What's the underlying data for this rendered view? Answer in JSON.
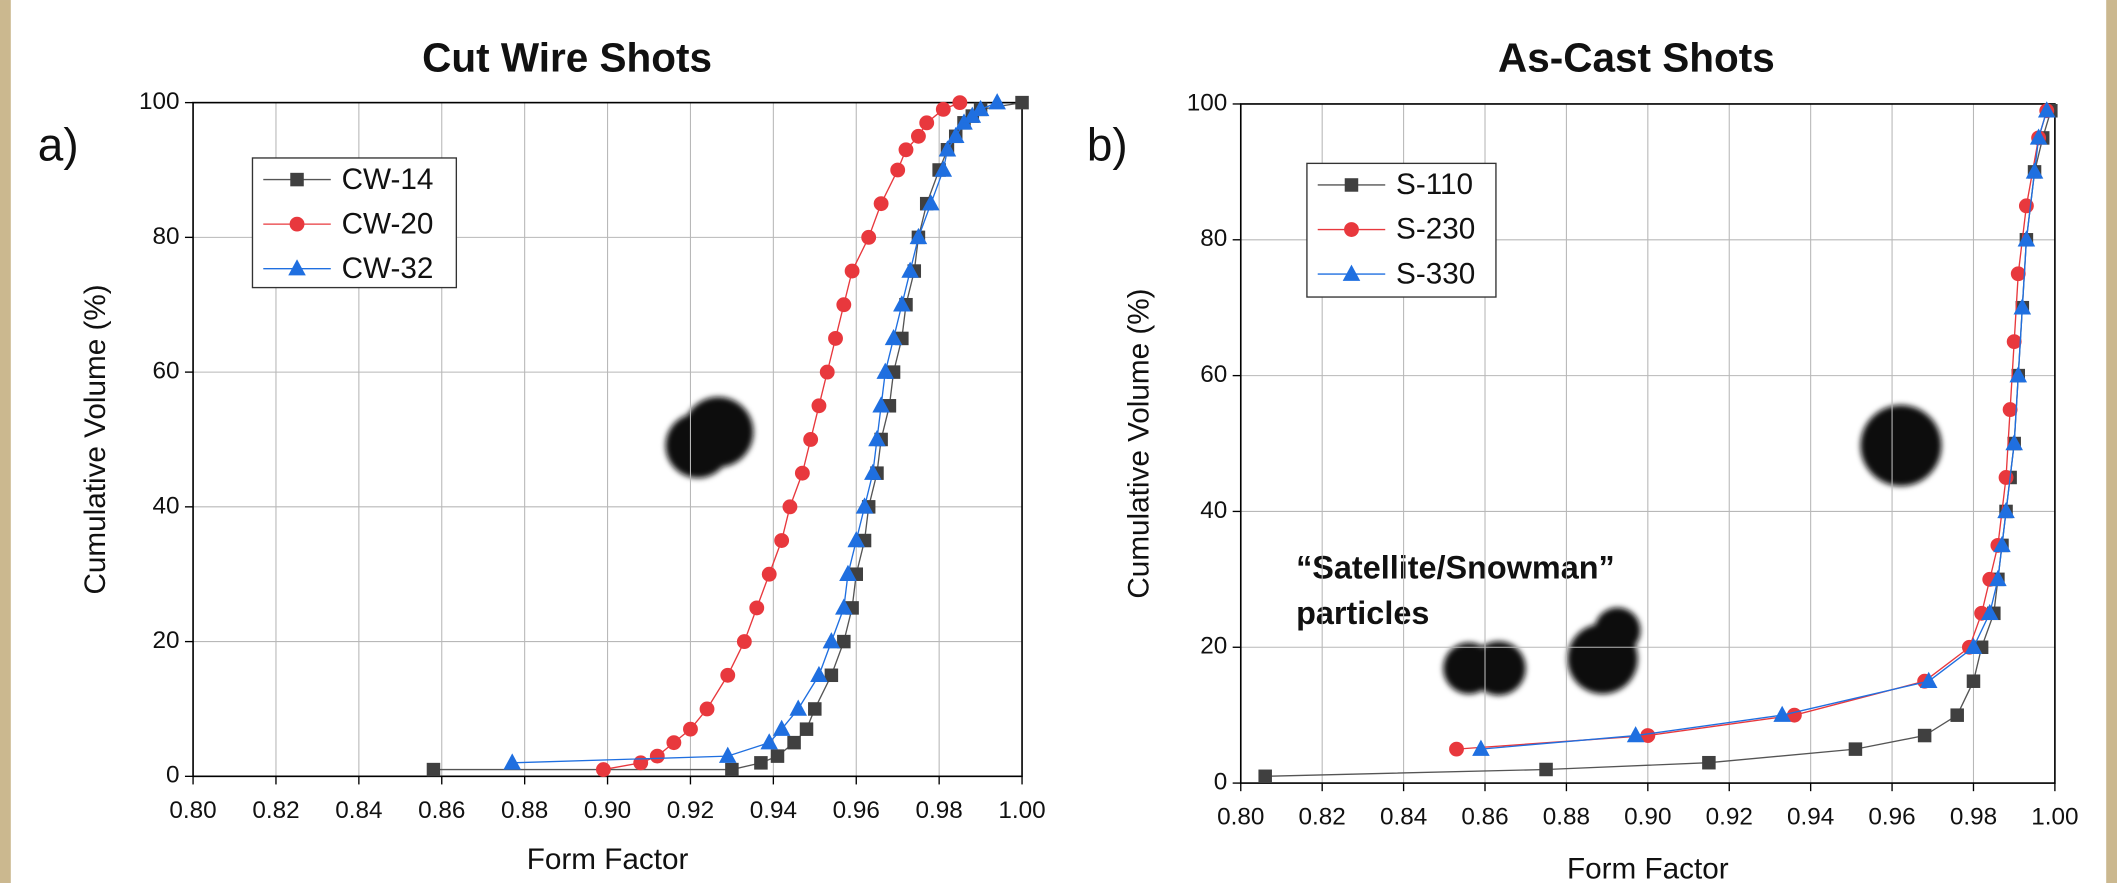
{
  "chart_data": [
    {
      "type": "line",
      "title": "Cut Wire Shots",
      "panel_label": "a)",
      "x_label": "Form Factor",
      "y_label": "Cumulative Volume (%)",
      "xlim": [
        0.8,
        1.0
      ],
      "ylim": [
        0,
        100
      ],
      "grid": true,
      "legend": "upper left",
      "xticks": [
        {
          "value": 0.8,
          "label": "0.80"
        },
        {
          "value": 0.82,
          "label": "0.82"
        },
        {
          "value": 0.84,
          "label": "0.84"
        },
        {
          "value": 0.86,
          "label": "0.86"
        },
        {
          "value": 0.88,
          "label": "0.88"
        },
        {
          "value": 0.9,
          "label": "0.90"
        },
        {
          "value": 0.92,
          "label": "0.92"
        },
        {
          "value": 0.94,
          "label": "0.94"
        },
        {
          "value": 0.96,
          "label": "0.96"
        },
        {
          "value": 0.98,
          "label": "0.98"
        },
        {
          "value": 1.0,
          "label": "1.00"
        }
      ],
      "yticks": [
        0,
        20,
        40,
        60,
        80,
        100
      ],
      "series": [
        {
          "name": "CW-14",
          "color": "#404040",
          "line_color": "#555555",
          "marker": "square",
          "x": [
            0.858,
            0.93,
            0.937,
            0.941,
            0.945,
            0.948,
            0.95,
            0.954,
            0.957,
            0.959,
            0.96,
            0.962,
            0.963,
            0.965,
            0.966,
            0.968,
            0.969,
            0.971,
            0.972,
            0.974,
            0.975,
            0.977,
            0.98,
            0.982,
            0.984,
            0.986,
            0.988,
            0.99,
            1.0
          ],
          "values": [
            1,
            1,
            2,
            3,
            5,
            7,
            10,
            15,
            20,
            25,
            30,
            35,
            40,
            45,
            50,
            55,
            60,
            65,
            70,
            75,
            80,
            85,
            90,
            93,
            95,
            97,
            98,
            99,
            100
          ]
        },
        {
          "name": "CW-20",
          "color": "#e8383d",
          "line_color": "#e8383d",
          "marker": "circle",
          "x": [
            0.899,
            0.908,
            0.912,
            0.916,
            0.92,
            0.924,
            0.929,
            0.933,
            0.936,
            0.939,
            0.942,
            0.944,
            0.947,
            0.949,
            0.951,
            0.953,
            0.955,
            0.957,
            0.959,
            0.963,
            0.966,
            0.97,
            0.972,
            0.975,
            0.977,
            0.981,
            0.985
          ],
          "values": [
            1,
            2,
            3,
            5,
            7,
            10,
            15,
            20,
            25,
            30,
            35,
            40,
            45,
            50,
            55,
            60,
            65,
            70,
            75,
            80,
            85,
            90,
            93,
            95,
            97,
            99,
            100
          ]
        },
        {
          "name": "CW-32",
          "color": "#1f6fe0",
          "line_color": "#1f6fe0",
          "marker": "triangle",
          "x": [
            0.877,
            0.929,
            0.939,
            0.942,
            0.946,
            0.951,
            0.954,
            0.957,
            0.958,
            0.96,
            0.962,
            0.964,
            0.965,
            0.966,
            0.967,
            0.969,
            0.971,
            0.973,
            0.975,
            0.978,
            0.981,
            0.982,
            0.984,
            0.986,
            0.988,
            0.99,
            0.994
          ],
          "values": [
            2,
            3,
            5,
            7,
            10,
            15,
            20,
            25,
            30,
            35,
            40,
            45,
            50,
            55,
            60,
            65,
            70,
            75,
            80,
            85,
            90,
            93,
            95,
            97,
            98,
            99,
            100
          ]
        }
      ]
    },
    {
      "type": "line",
      "title": "As-Cast Shots",
      "panel_label": "b)",
      "x_label": "Form Factor",
      "y_label": "Cumulative Volume (%)",
      "annotation": [
        "“Satellite/Snowman”",
        "particles"
      ],
      "xlim": [
        0.8,
        1.0
      ],
      "ylim": [
        0,
        100
      ],
      "grid": true,
      "legend": "upper left",
      "xticks": [
        {
          "value": 0.8,
          "label": "0.80"
        },
        {
          "value": 0.82,
          "label": "0.82"
        },
        {
          "value": 0.84,
          "label": "0.84"
        },
        {
          "value": 0.86,
          "label": "0.86"
        },
        {
          "value": 0.88,
          "label": "0.88"
        },
        {
          "value": 0.9,
          "label": "0.90"
        },
        {
          "value": 0.92,
          "label": "0.92"
        },
        {
          "value": 0.94,
          "label": "0.94"
        },
        {
          "value": 0.96,
          "label": "0.96"
        },
        {
          "value": 0.98,
          "label": "0.98"
        },
        {
          "value": 1.0,
          "label": "1.00"
        }
      ],
      "yticks": [
        0,
        20,
        40,
        60,
        80,
        100
      ],
      "series": [
        {
          "name": "S-110",
          "color": "#404040",
          "line_color": "#555555",
          "marker": "square",
          "x": [
            0.806,
            0.875,
            0.915,
            0.951,
            0.968,
            0.976,
            0.98,
            0.982,
            0.985,
            0.986,
            0.987,
            0.988,
            0.989,
            0.99,
            0.991,
            0.992,
            0.993,
            0.995,
            0.997,
            0.999
          ],
          "values": [
            1,
            2,
            3,
            5,
            7,
            10,
            15,
            20,
            25,
            30,
            35,
            40,
            45,
            50,
            60,
            70,
            80,
            90,
            95,
            99
          ]
        },
        {
          "name": "S-230",
          "color": "#e8383d",
          "line_color": "#e8383d",
          "marker": "circle",
          "x": [
            0.853,
            0.9,
            0.936,
            0.968,
            0.979,
            0.982,
            0.984,
            0.986,
            0.988,
            0.989,
            0.99,
            0.991,
            0.993,
            0.996,
            0.998
          ],
          "values": [
            5,
            7,
            10,
            15,
            20,
            25,
            30,
            35,
            45,
            55,
            65,
            75,
            85,
            95,
            99
          ]
        },
        {
          "name": "S-330",
          "color": "#1f6fe0",
          "line_color": "#1f6fe0",
          "marker": "triangle",
          "x": [
            0.859,
            0.897,
            0.933,
            0.969,
            0.98,
            0.984,
            0.986,
            0.987,
            0.988,
            0.99,
            0.991,
            0.992,
            0.993,
            0.995,
            0.996,
            0.998
          ],
          "values": [
            5,
            7,
            10,
            15,
            20,
            25,
            30,
            35,
            40,
            50,
            60,
            70,
            80,
            90,
            95,
            99
          ]
        }
      ]
    }
  ]
}
